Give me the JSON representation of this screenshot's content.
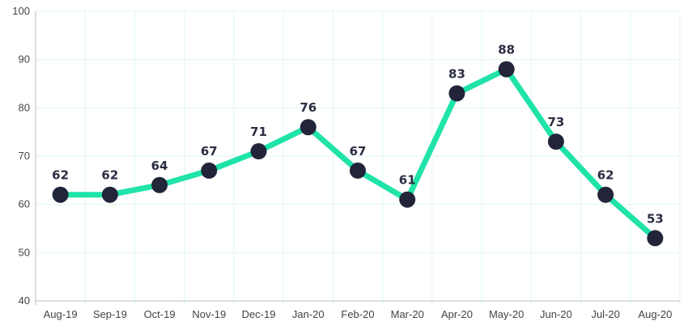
{
  "chart_data": {
    "type": "line",
    "categories": [
      "Aug-19",
      "Sep-19",
      "Oct-19",
      "Nov-19",
      "Dec-19",
      "Jan-20",
      "Feb-20",
      "Mar-20",
      "Apr-20",
      "May-20",
      "Jun-20",
      "Jul-20",
      "Aug-20"
    ],
    "series": [
      {
        "values": [
          62,
          62,
          64,
          67,
          71,
          76,
          67,
          61,
          83,
          88,
          73,
          62,
          53
        ]
      }
    ],
    "ylim": [
      40,
      100
    ],
    "yticks": [
      40,
      50,
      60,
      70,
      80,
      90,
      100
    ],
    "grid": true,
    "legend": "none",
    "data_labels": true
  },
  "colors": {
    "line": "#1fe3a8",
    "marker": "#22253a",
    "grid": "#dff7ef",
    "axis": "#b8bfc6"
  }
}
